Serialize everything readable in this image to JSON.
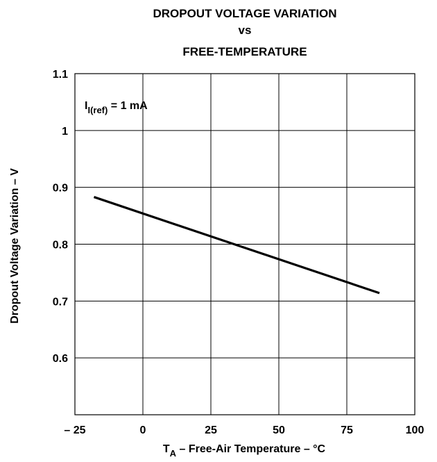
{
  "chart_data": {
    "type": "line",
    "title_lines": [
      "DROPOUT VOLTAGE VARIATION",
      "vs",
      "FREE-TEMPERATURE"
    ],
    "xlabel": {
      "main": "T",
      "sub": "A",
      "rest": " – Free-Air Temperature – °C"
    },
    "ylabel": "Dropout Voltage Variation – V",
    "xlim": [
      -25,
      100
    ],
    "ylim": [
      0.5,
      1.1
    ],
    "x_ticks": [
      -25,
      0,
      25,
      50,
      75,
      100
    ],
    "x_tick_labels": [
      "– 25",
      "0",
      "25",
      "50",
      "75",
      "100"
    ],
    "y_ticks": [
      0.6,
      0.7,
      0.8,
      0.9,
      1.0,
      1.1
    ],
    "y_tick_labels": [
      "0.6",
      "0.7",
      "0.8",
      "0.9",
      "1",
      "1.1"
    ],
    "grid": true,
    "annotation": {
      "main": "I",
      "sub": "I(ref)",
      "rest": " = 1 mA"
    },
    "series": [
      {
        "x": [
          -18,
          87
        ],
        "y": [
          0.883,
          0.714
        ]
      }
    ],
    "line_color": "#000000"
  }
}
